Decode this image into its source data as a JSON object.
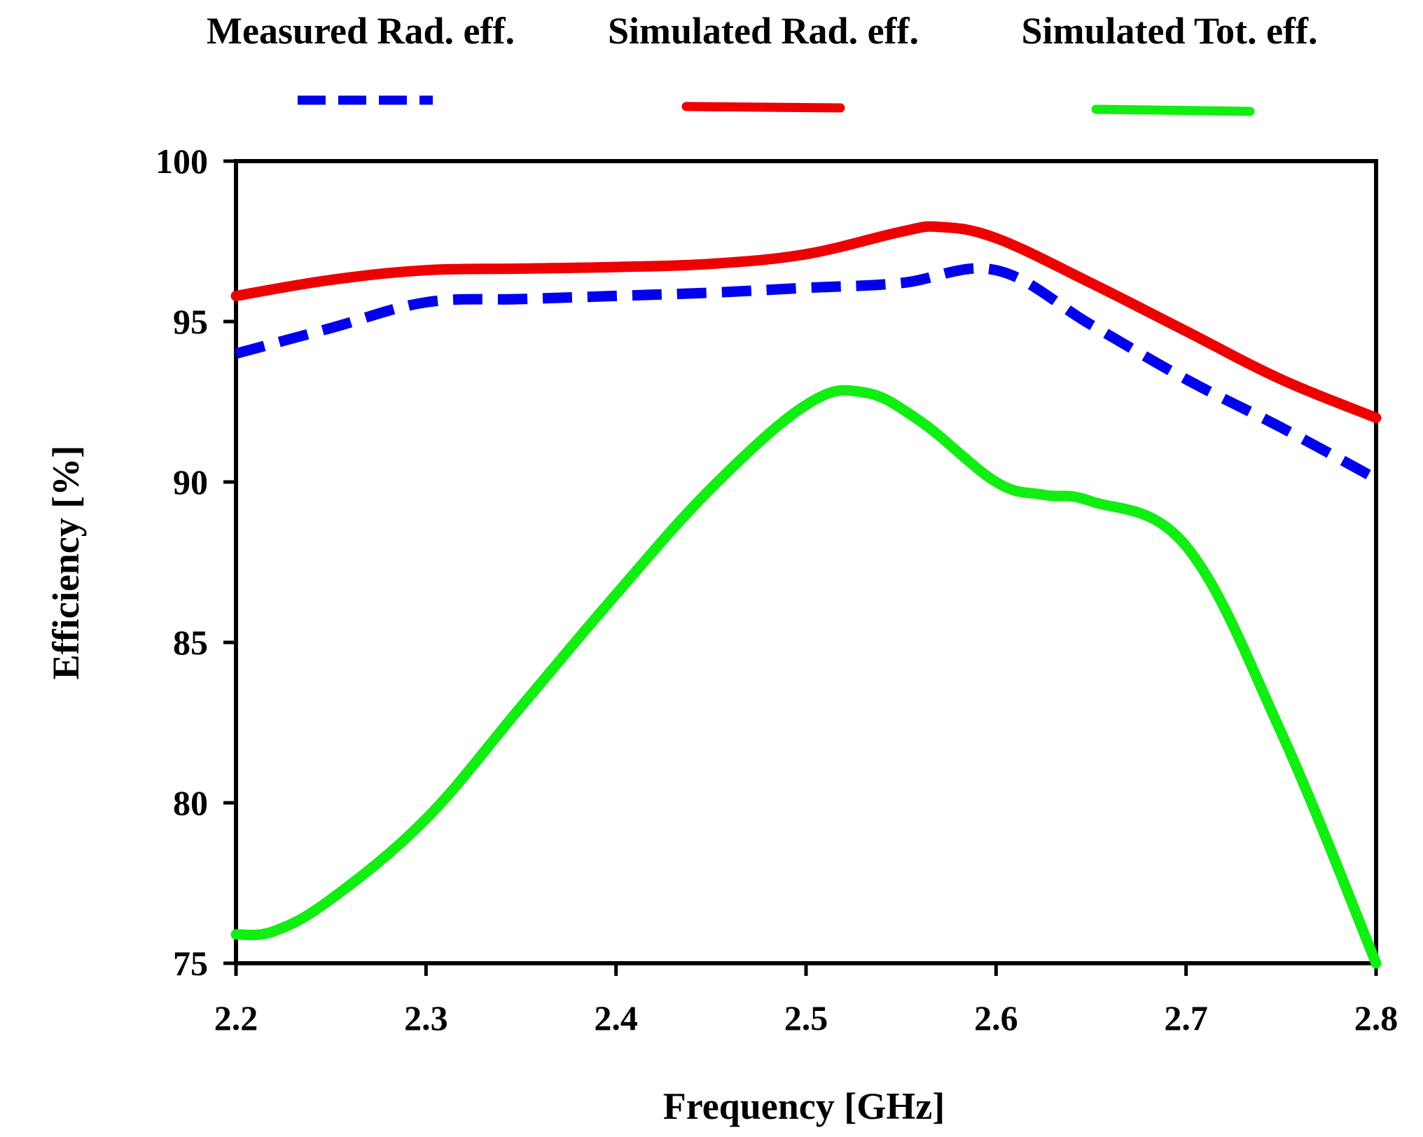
{
  "chart_data": {
    "type": "line",
    "title": "",
    "xlabel": "Frequency [GHz]",
    "ylabel": "Efficiency [%]",
    "xlim": [
      2.2,
      2.8
    ],
    "ylim": [
      75,
      100
    ],
    "xticks": [
      "2.2",
      "2.3",
      "2.4",
      "2.5",
      "2.6",
      "2.7",
      "2.8"
    ],
    "yticks": [
      "75",
      "80",
      "85",
      "90",
      "95",
      "100"
    ],
    "grid": false,
    "legend_position": "top",
    "series": [
      {
        "name": "Measured Rad. eff.",
        "color": "#0000ee",
        "style": "dashed",
        "x": [
          2.2,
          2.25,
          2.3,
          2.35,
          2.4,
          2.45,
          2.5,
          2.55,
          2.6,
          2.65,
          2.7,
          2.75,
          2.8
        ],
        "y": [
          94.0,
          94.8,
          95.6,
          95.7,
          95.8,
          95.9,
          96.05,
          96.2,
          96.6,
          94.9,
          93.2,
          91.7,
          90.1
        ]
      },
      {
        "name": "Simulated Rad. eff.",
        "color": "#ee0000",
        "style": "solid",
        "x": [
          2.2,
          2.25,
          2.3,
          2.35,
          2.4,
          2.45,
          2.5,
          2.55,
          2.57,
          2.6,
          2.65,
          2.7,
          2.75,
          2.8
        ],
        "y": [
          95.8,
          96.3,
          96.6,
          96.65,
          96.7,
          96.8,
          97.1,
          97.8,
          97.95,
          97.6,
          96.2,
          94.7,
          93.2,
          92.0
        ]
      },
      {
        "name": "Simulated Tot. eff.",
        "color": "#11ee11",
        "style": "solid",
        "x": [
          2.2,
          2.22,
          2.25,
          2.3,
          2.35,
          2.4,
          2.45,
          2.5,
          2.53,
          2.56,
          2.6,
          2.625,
          2.65,
          2.7,
          2.75,
          2.8
        ],
        "y": [
          75.9,
          76.0,
          77.0,
          79.5,
          83.0,
          86.5,
          89.8,
          92.4,
          92.8,
          91.9,
          90.0,
          89.6,
          89.4,
          88.0,
          82.2,
          75.0
        ]
      }
    ]
  }
}
